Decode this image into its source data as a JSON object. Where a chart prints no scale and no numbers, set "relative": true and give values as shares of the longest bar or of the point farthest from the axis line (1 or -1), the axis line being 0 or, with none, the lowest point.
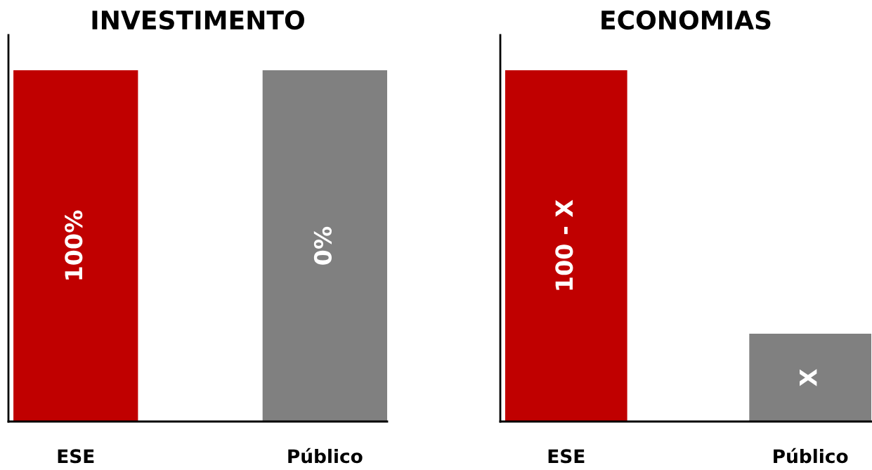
{
  "chart_data": [
    {
      "type": "bar",
      "title": "INVESTIMENTO",
      "categories": [
        "ESE",
        "Público"
      ],
      "relative": true,
      "values": [
        1,
        1
      ],
      "colors": [
        "#c00000",
        "#808080"
      ],
      "annotations": [
        "100%",
        "0%"
      ]
    },
    {
      "type": "bar",
      "title": "ECONOMIAS",
      "categories": [
        "ESE",
        "Público"
      ],
      "relative": true,
      "values": [
        1,
        0.25
      ],
      "colors": [
        "#c00000",
        "#808080"
      ],
      "annotations": [
        "100 - X",
        "X"
      ]
    }
  ]
}
